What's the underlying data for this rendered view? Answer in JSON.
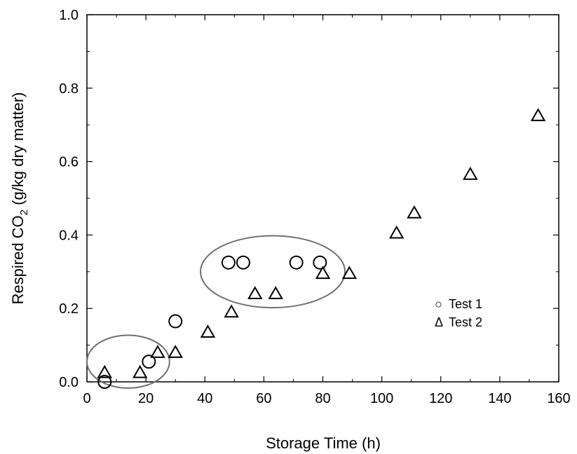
{
  "chart_data": {
    "type": "scatter",
    "title": "",
    "xlabel": "Storage Time (h)",
    "ylabel_main": "Respired CO",
    "ylabel_sub": "2",
    "ylabel_rest": " (g/kg dry matter)",
    "xlim": [
      0,
      160
    ],
    "ylim": [
      0.0,
      1.0
    ],
    "x_ticks": [
      0,
      20,
      40,
      60,
      80,
      100,
      120,
      140,
      160
    ],
    "y_ticks": [
      0.0,
      0.2,
      0.4,
      0.6,
      0.8,
      1.0
    ],
    "x_tick_labels": [
      "0",
      "20",
      "40",
      "60",
      "80",
      "100",
      "120",
      "140",
      "160"
    ],
    "y_tick_labels": [
      "0.0",
      "0.2",
      "0.4",
      "0.6",
      "0.8",
      "1.0"
    ],
    "grid": false,
    "legend_position": "right-lower",
    "series": [
      {
        "name": "Test 1",
        "marker": "circle",
        "x": [
          6,
          21,
          30,
          48,
          53,
          71,
          79
        ],
        "y": [
          0.0,
          0.055,
          0.165,
          0.325,
          0.325,
          0.325,
          0.325
        ]
      },
      {
        "name": "Test 2",
        "marker": "triangle",
        "x": [
          6,
          18,
          24,
          30,
          41,
          49,
          57,
          64,
          80,
          89,
          105,
          111,
          130,
          153
        ],
        "y": [
          0.025,
          0.025,
          0.08,
          0.08,
          0.135,
          0.19,
          0.24,
          0.24,
          0.295,
          0.295,
          0.405,
          0.46,
          0.565,
          0.725
        ]
      }
    ],
    "legend": [
      {
        "symbol": "○",
        "label": "Test 1"
      },
      {
        "symbol": "Δ",
        "label": "Test 2"
      }
    ],
    "annotations": [
      {
        "type": "ellipse",
        "x": 14,
        "y": 0.055,
        "rx": 14,
        "ry": 0.072
      },
      {
        "type": "ellipse",
        "x": 63,
        "y": 0.3,
        "rx": 24.5,
        "ry": 0.098
      }
    ],
    "colors": {
      "marker_stroke": "#000000",
      "ellipse_stroke": "#707070",
      "axis": "#000000"
    }
  }
}
